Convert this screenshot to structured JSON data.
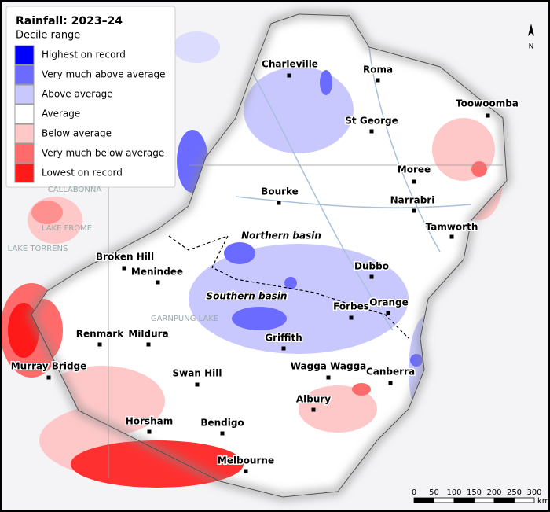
{
  "legend": {
    "title": "Rainfall: 2023–24",
    "subtitle": "Decile range",
    "items": [
      {
        "label": "Highest on record",
        "color": "#0000ff"
      },
      {
        "label": "Very much above average",
        "color": "#6b6bff"
      },
      {
        "label": "Above average",
        "color": "#c8c8ff"
      },
      {
        "label": "Average",
        "color": "#ffffff"
      },
      {
        "label": "Below average",
        "color": "#ffc8c8"
      },
      {
        "label": "Very much below average",
        "color": "#ff6b6b"
      },
      {
        "label": "Lowest on record",
        "color": "#ff1a1a"
      }
    ]
  },
  "places": [
    "Charleville",
    "Roma",
    "Toowoomba",
    "St George",
    "Moree",
    "Narrabri",
    "Bourke",
    "Tamworth",
    "Broken Hill",
    "Menindee",
    "Dubbo",
    "Orange",
    "Forbes",
    "Griffith",
    "Renmark",
    "Mildura",
    "Wagga Wagga",
    "Canberra",
    "Swan Hill",
    "Murray Bridge",
    "Albury",
    "Horsham",
    "Bendigo",
    "Melbourne"
  ],
  "basins": [
    "Northern basin",
    "Southern basin"
  ],
  "lakes": [
    "CALLABONNA",
    "LAKE FROME",
    "LAKE TORRENS",
    "GARNPUNG LAKE"
  ],
  "scale": {
    "ticks": [
      "0",
      "50",
      "100",
      "150",
      "200",
      "250",
      "300"
    ],
    "unit": "km"
  },
  "north": "N"
}
